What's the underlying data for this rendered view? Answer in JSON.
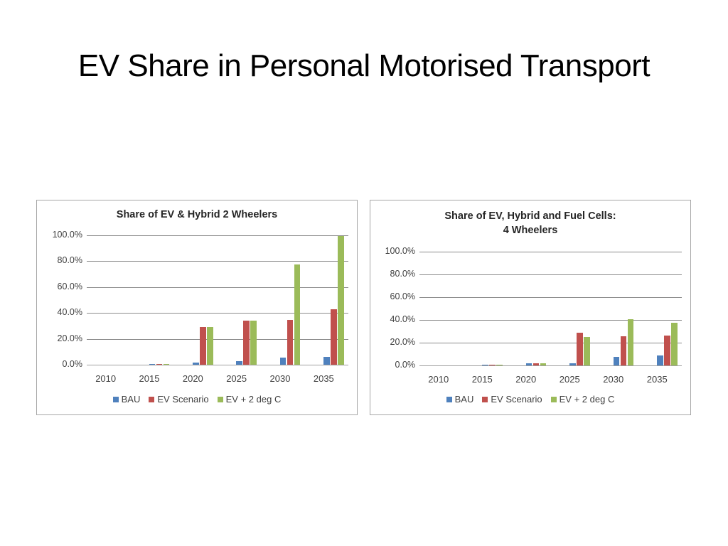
{
  "slide": {
    "title": "EV Share in Personal Motorised Transport"
  },
  "colors": {
    "bau": "#4f81bd",
    "ev_scenario": "#c0504d",
    "ev_2deg": "#9bbb59"
  },
  "chart_data": [
    {
      "type": "bar",
      "title": "Share of EV & Hybrid 2 Wheelers",
      "xlabel": "",
      "ylabel": "",
      "ylim": [
        0,
        100
      ],
      "yticks": [
        "0.0%",
        "20.0%",
        "40.0%",
        "60.0%",
        "80.0%",
        "100.0%"
      ],
      "grid": true,
      "legend_position": "bottom",
      "categories": [
        "2010",
        "2015",
        "2020",
        "2025",
        "2030",
        "2035"
      ],
      "series": [
        {
          "name": "BAU",
          "values": [
            0,
            0.5,
            1.5,
            2.5,
            5.5,
            6.0
          ]
        },
        {
          "name": "EV Scenario",
          "values": [
            0,
            0.5,
            29.0,
            34.0,
            34.5,
            43.0
          ]
        },
        {
          "name": "EV + 2 deg C",
          "values": [
            0,
            0.5,
            29.0,
            34.0,
            77.5,
            99.5
          ]
        }
      ]
    },
    {
      "type": "bar",
      "title": "Share of EV, Hybrid and Fuel Cells: 4 Wheelers",
      "title_lines": [
        "Share of EV, Hybrid and Fuel Cells:",
        "4 Wheelers"
      ],
      "xlabel": "",
      "ylabel": "",
      "ylim": [
        0,
        100
      ],
      "yticks": [
        "0.0%",
        "20.0%",
        "40.0%",
        "60.0%",
        "80.0%",
        "100.0%"
      ],
      "grid": true,
      "legend_position": "bottom",
      "categories": [
        "2010",
        "2015",
        "2020",
        "2025",
        "2030",
        "2035"
      ],
      "series": [
        {
          "name": "BAU",
          "values": [
            0,
            0.5,
            2.0,
            2.0,
            7.5,
            8.5
          ]
        },
        {
          "name": "EV Scenario",
          "values": [
            0,
            0.5,
            2.0,
            28.5,
            25.5,
            26.5
          ]
        },
        {
          "name": "EV + 2 deg C",
          "values": [
            0,
            0.5,
            2.0,
            25.0,
            40.5,
            37.5
          ]
        }
      ]
    }
  ]
}
